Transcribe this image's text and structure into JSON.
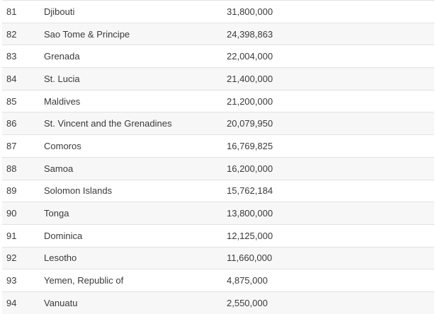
{
  "table": {
    "rows": [
      {
        "rank": "81",
        "country": "Djibouti",
        "value": "31,800,000"
      },
      {
        "rank": "82",
        "country": "Sao Tome & Principe",
        "value": "24,398,863"
      },
      {
        "rank": "83",
        "country": "Grenada",
        "value": "22,004,000"
      },
      {
        "rank": "84",
        "country": "St. Lucia",
        "value": "21,400,000"
      },
      {
        "rank": "85",
        "country": "Maldives",
        "value": "21,200,000"
      },
      {
        "rank": "86",
        "country": "St. Vincent and the Grenadines",
        "value": "20,079,950"
      },
      {
        "rank": "87",
        "country": "Comoros",
        "value": "16,769,825"
      },
      {
        "rank": "88",
        "country": "Samoa",
        "value": "16,200,000"
      },
      {
        "rank": "89",
        "country": "Solomon Islands",
        "value": "15,762,184"
      },
      {
        "rank": "90",
        "country": "Tonga",
        "value": "13,800,000"
      },
      {
        "rank": "91",
        "country": "Dominica",
        "value": "12,125,000"
      },
      {
        "rank": "92",
        "country": "Lesotho",
        "value": "11,660,000"
      },
      {
        "rank": "93",
        "country": "Yemen, Republic of",
        "value": "4,875,000"
      },
      {
        "rank": "94",
        "country": "Vanuatu",
        "value": "2,550,000"
      }
    ]
  }
}
